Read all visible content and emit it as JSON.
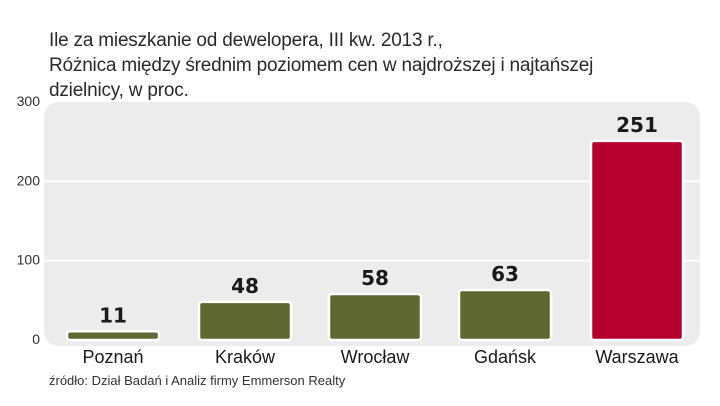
{
  "title_lines": [
    "Ile za mieszkanie od dewelopera,  III kw. 2013 r.,",
    "Różnica między średnim poziomem cen w najdroższej i najtańszej",
    "dzielnicy, w proc."
  ],
  "source": "źródło: Dział Badań i Analiz firmy Emmerson Realty",
  "chart_data": {
    "type": "bar",
    "categories": [
      "Poznań",
      "Kraków",
      "Wrocław",
      "Gdańsk",
      "Warszawa"
    ],
    "values": [
      11,
      48,
      58,
      63,
      251
    ],
    "value_labels": [
      "11",
      "48",
      "58",
      "63",
      "251"
    ],
    "ylim": [
      0,
      300
    ],
    "yticks": [
      "0",
      "100",
      "200",
      "300"
    ],
    "xlabel": "",
    "ylabel": "",
    "grid": true,
    "colors": {
      "default_bar": "#5e6830",
      "highlight_bar": "#b5002f",
      "plot_background": "#ececec",
      "gridline": "#ffffff"
    },
    "highlight_index": 4
  }
}
